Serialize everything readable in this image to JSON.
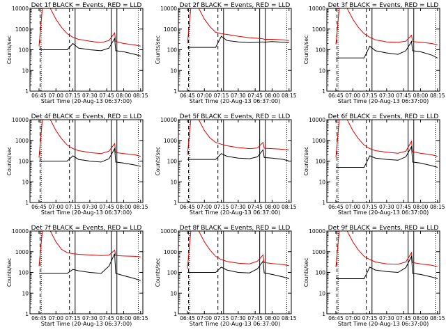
{
  "colors": {
    "events": "#000000",
    "lld": "#e00000",
    "axes": "#000000",
    "background": "#ffffff"
  },
  "shared": {
    "xlabel": "Start Time (20-Aug-13 06:37:00)",
    "ylabel": "Counts/sec",
    "x_tick_labels": [
      "06:45",
      "07:00",
      "07:15",
      "07:30",
      "07:45",
      "08:00",
      "08:15"
    ],
    "y_tick_labels": [
      "1",
      "10",
      "100",
      "1000",
      "10000"
    ],
    "y_scale": "log",
    "ylim": [
      1,
      10000
    ],
    "xlim": [
      "06:37",
      "08:17"
    ]
  },
  "chart_data": [
    {
      "type": "line",
      "title": "Det 1f BLACK = Events, RED = LLD",
      "x": [
        "06:45",
        "06:48",
        "06:51",
        "06:55",
        "07:00",
        "07:05",
        "07:10",
        "07:15",
        "07:20",
        "07:30",
        "07:40",
        "07:47",
        "07:52",
        "07:53",
        "08:00",
        "08:10",
        "08:15"
      ],
      "series": [
        {
          "name": "LLD",
          "color": "red",
          "values": [
            150,
            10000,
            10000,
            10000,
            3000,
            1200,
            600,
            400,
            320,
            260,
            220,
            280,
            650,
            250,
            200,
            170,
            150
          ]
        },
        {
          "name": "Events",
          "color": "black",
          "values": [
            100,
            100,
            100,
            100,
            100,
            100,
            100,
            200,
            120,
            100,
            90,
            120,
            350,
            90,
            80,
            60,
            50
          ]
        }
      ],
      "markers": {
        "dashed": [
          "06:46",
          "07:12"
        ],
        "solid": [
          "07:17",
          "07:49",
          "07:54"
        ],
        "dotted": [
          "06:47",
          "08:13"
        ]
      }
    },
    {
      "type": "line",
      "title": "Det 2f BLACK = Events, RED = LLD",
      "x": [
        "06:45",
        "06:48",
        "06:51",
        "06:55",
        "07:00",
        "07:05",
        "07:10",
        "07:15",
        "07:20",
        "07:30",
        "07:40",
        "07:47",
        "07:52",
        "07:53",
        "08:00",
        "08:10",
        "08:15"
      ],
      "series": [
        {
          "name": "LLD",
          "color": "red",
          "values": [
            200,
            10000,
            10000,
            10000,
            3000,
            1300,
            700,
            600,
            550,
            450,
            380,
            360,
            340,
            320,
            320,
            300,
            280
          ]
        },
        {
          "name": "Events",
          "color": "black",
          "values": [
            130,
            130,
            130,
            130,
            130,
            130,
            130,
            450,
            280,
            240,
            220,
            230,
            240,
            230,
            250,
            230,
            220
          ]
        }
      ],
      "markers": {
        "dashed": [
          "06:46",
          "07:12"
        ],
        "solid": [
          "07:17",
          "07:49",
          "07:54"
        ],
        "dotted": [
          "06:47",
          "08:13"
        ]
      }
    },
    {
      "type": "line",
      "title": "Det 3f BLACK = Events, RED = LLD",
      "x": [
        "06:45",
        "06:48",
        "06:51",
        "06:55",
        "07:00",
        "07:05",
        "07:10",
        "07:15",
        "07:20",
        "07:30",
        "07:40",
        "07:47",
        "07:52",
        "07:53",
        "08:00",
        "08:10",
        "08:15"
      ],
      "series": [
        {
          "name": "LLD",
          "color": "red",
          "values": [
            180,
            10000,
            10000,
            10000,
            3000,
            1200,
            600,
            400,
            300,
            240,
            230,
            260,
            500,
            250,
            230,
            200,
            170
          ]
        },
        {
          "name": "Events",
          "color": "black",
          "values": [
            40,
            40,
            40,
            40,
            40,
            40,
            40,
            150,
            90,
            70,
            60,
            90,
            250,
            90,
            80,
            55,
            40
          ]
        }
      ],
      "markers": {
        "dashed": [
          "06:46",
          "07:12"
        ],
        "solid": [
          "07:17",
          "07:49",
          "07:54"
        ],
        "dotted": [
          "06:47",
          "08:13"
        ]
      }
    },
    {
      "type": "line",
      "title": "Det 4f BLACK = Events, RED = LLD",
      "x": [
        "06:45",
        "06:48",
        "06:51",
        "06:55",
        "07:00",
        "07:05",
        "07:10",
        "07:15",
        "07:20",
        "07:30",
        "07:40",
        "07:47",
        "07:52",
        "07:53",
        "08:00",
        "08:10",
        "08:15"
      ],
      "series": [
        {
          "name": "LLD",
          "color": "red",
          "values": [
            150,
            10000,
            10000,
            10000,
            3000,
            1200,
            600,
            400,
            320,
            260,
            230,
            300,
            700,
            260,
            230,
            200,
            170
          ]
        },
        {
          "name": "Events",
          "color": "black",
          "values": [
            100,
            100,
            100,
            100,
            100,
            100,
            100,
            180,
            120,
            100,
            90,
            130,
            400,
            90,
            80,
            65,
            55
          ]
        }
      ],
      "markers": {
        "dashed": [
          "06:46",
          "07:12"
        ],
        "solid": [
          "07:17",
          "07:49",
          "07:54"
        ],
        "dotted": [
          "06:47",
          "08:13"
        ]
      }
    },
    {
      "type": "line",
      "title": "Det 5f BLACK = Events, RED = LLD",
      "x": [
        "06:45",
        "06:48",
        "06:51",
        "06:55",
        "07:00",
        "07:05",
        "07:10",
        "07:15",
        "07:20",
        "07:30",
        "07:40",
        "07:47",
        "07:52",
        "07:53",
        "08:00",
        "08:10",
        "08:15"
      ],
      "series": [
        {
          "name": "LLD",
          "color": "red",
          "values": [
            200,
            10000,
            10000,
            10000,
            3000,
            1300,
            800,
            650,
            550,
            450,
            400,
            430,
            800,
            420,
            400,
            370,
            340
          ]
        },
        {
          "name": "Events",
          "color": "black",
          "values": [
            120,
            120,
            120,
            120,
            120,
            120,
            120,
            230,
            170,
            140,
            130,
            160,
            350,
            150,
            140,
            120,
            100
          ]
        }
      ],
      "markers": {
        "dashed": [
          "06:46",
          "07:12"
        ],
        "solid": [
          "07:17",
          "07:49",
          "07:54"
        ],
        "dotted": [
          "06:47",
          "08:13"
        ]
      }
    },
    {
      "type": "line",
      "title": "Det 6f BLACK = Events, RED = LLD",
      "x": [
        "06:45",
        "06:48",
        "06:51",
        "06:55",
        "07:00",
        "07:05",
        "07:10",
        "07:15",
        "07:20",
        "07:30",
        "07:40",
        "07:47",
        "07:52",
        "07:53",
        "08:00",
        "08:10",
        "08:15"
      ],
      "series": [
        {
          "name": "LLD",
          "color": "red",
          "values": [
            150,
            10000,
            10000,
            10000,
            3000,
            1200,
            600,
            400,
            320,
            270,
            240,
            300,
            900,
            280,
            240,
            200,
            170
          ]
        },
        {
          "name": "Events",
          "color": "black",
          "values": [
            50,
            50,
            50,
            50,
            50,
            50,
            50,
            180,
            140,
            120,
            110,
            160,
            500,
            90,
            80,
            60,
            50
          ]
        }
      ],
      "markers": {
        "dashed": [
          "06:46",
          "07:12"
        ],
        "solid": [
          "07:17",
          "07:49",
          "07:54"
        ],
        "dotted": [
          "06:47",
          "08:13"
        ]
      }
    },
    {
      "type": "line",
      "title": "Det 7f BLACK = Events, RED = LLD",
      "x": [
        "06:45",
        "06:48",
        "06:51",
        "06:55",
        "07:00",
        "07:05",
        "07:10",
        "07:15",
        "07:20",
        "07:30",
        "07:40",
        "07:47",
        "07:52",
        "07:53",
        "08:00",
        "08:10",
        "08:15"
      ],
      "series": [
        {
          "name": "LLD",
          "color": "red",
          "values": [
            200,
            10000,
            10000,
            10000,
            3000,
            1300,
            900,
            800,
            750,
            700,
            650,
            680,
            1200,
            650,
            620,
            600,
            560
          ]
        },
        {
          "name": "Events",
          "color": "black",
          "values": [
            90,
            90,
            90,
            90,
            90,
            90,
            90,
            140,
            120,
            100,
            90,
            200,
            800,
            90,
            70,
            50,
            40
          ]
        }
      ],
      "markers": {
        "dashed": [
          "06:46",
          "07:12"
        ],
        "solid": [
          "07:17",
          "07:49",
          "07:54"
        ],
        "dotted": [
          "06:47",
          "08:13"
        ]
      }
    },
    {
      "type": "line",
      "title": "Det 8f BLACK = Events, RED = LLD",
      "x": [
        "06:45",
        "06:48",
        "06:51",
        "06:55",
        "07:00",
        "07:05",
        "07:10",
        "07:15",
        "07:20",
        "07:30",
        "07:40",
        "07:47",
        "07:52",
        "07:53",
        "08:00",
        "08:10",
        "08:15"
      ],
      "series": [
        {
          "name": "LLD",
          "color": "red",
          "values": [
            150,
            10000,
            10000,
            10000,
            3000,
            1200,
            600,
            420,
            340,
            280,
            260,
            350,
            700,
            300,
            270,
            240,
            210
          ]
        },
        {
          "name": "Events",
          "color": "black",
          "values": [
            100,
            100,
            100,
            100,
            100,
            100,
            100,
            180,
            130,
            100,
            95,
            150,
            350,
            95,
            80,
            60,
            50
          ]
        }
      ],
      "markers": {
        "dashed": [
          "06:46",
          "07:12"
        ],
        "solid": [
          "07:17",
          "07:49",
          "07:54"
        ],
        "dotted": [
          "06:47",
          "08:13"
        ]
      }
    },
    {
      "type": "line",
      "title": "Det 9f BLACK = Events, RED = LLD",
      "x": [
        "06:45",
        "06:48",
        "06:51",
        "06:55",
        "07:00",
        "07:05",
        "07:10",
        "07:15",
        "07:20",
        "07:30",
        "07:40",
        "07:47",
        "07:52",
        "07:53",
        "08:00",
        "08:10",
        "08:15"
      ],
      "series": [
        {
          "name": "LLD",
          "color": "red",
          "values": [
            180,
            10000,
            10000,
            10000,
            3000,
            1200,
            600,
            420,
            320,
            260,
            250,
            320,
            900,
            300,
            260,
            220,
            190
          ]
        },
        {
          "name": "Events",
          "color": "black",
          "values": [
            50,
            50,
            50,
            50,
            50,
            50,
            50,
            180,
            130,
            110,
            100,
            170,
            600,
            90,
            80,
            60,
            50
          ]
        }
      ],
      "markers": {
        "dashed": [
          "06:46",
          "07:12"
        ],
        "solid": [
          "07:17",
          "07:49",
          "07:54"
        ],
        "dotted": [
          "06:47",
          "08:13"
        ]
      }
    }
  ]
}
